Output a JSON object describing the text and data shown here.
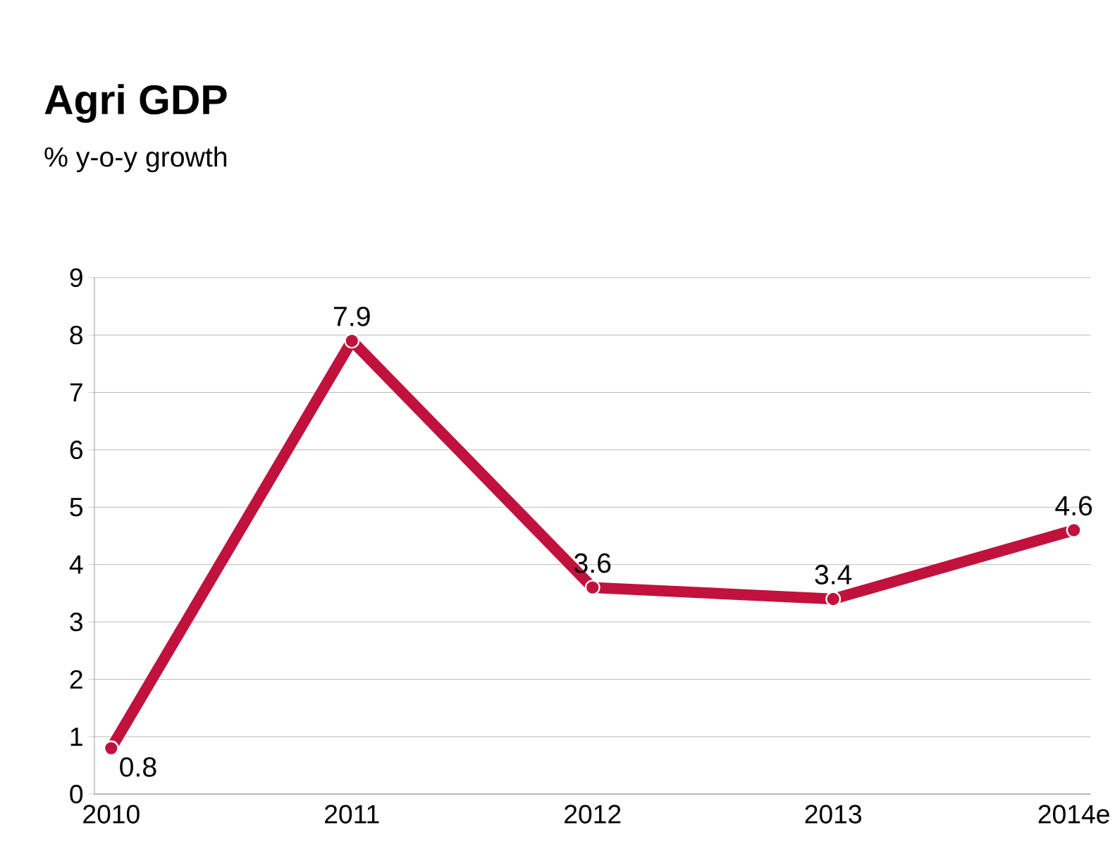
{
  "chart_data": {
    "type": "line",
    "title": "Agri GDP",
    "subtitle": "% y-o-y growth",
    "categories": [
      "2010",
      "2011",
      "2012",
      "2013",
      "2014e"
    ],
    "values": [
      0.8,
      7.9,
      3.6,
      3.4,
      4.6
    ],
    "color": "#c0123c",
    "marker": "circle",
    "line_style": "solid",
    "ylim": [
      0,
      9
    ],
    "yticks": [
      0,
      1,
      2,
      3,
      4,
      5,
      6,
      7,
      8,
      9
    ],
    "grid": "y",
    "data_labels": true
  }
}
